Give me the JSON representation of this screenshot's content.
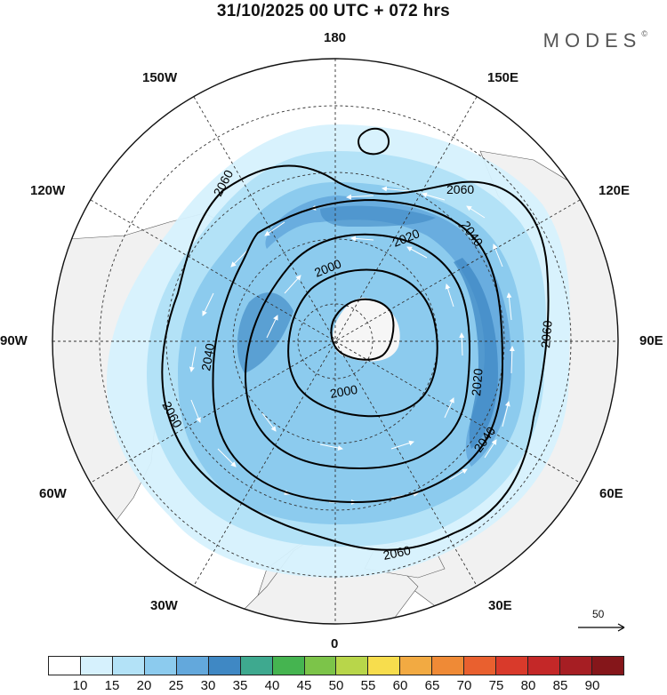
{
  "title": "31/10/2025  00 UTC  + 072 hrs",
  "brand": "MODES",
  "brand_mark": "©",
  "longitude_labels": {
    "north": "180",
    "south": "0",
    "east": "90E",
    "west": "90W",
    "l150w": "150W",
    "l150e": "150E",
    "l120w": "120W",
    "l120e": "120E",
    "l60w": "60W",
    "l60e": "60E",
    "l30w": "30W",
    "l30e": "30E"
  },
  "contour_labels": {
    "c2060_top": "2060",
    "c2060_ne": "2060",
    "c2060_e": "2060",
    "c2060_sw": "2060",
    "c2060_s": "2060",
    "c2040_ne": "2040",
    "c2040_w": "2040",
    "c2040_se": "2040",
    "c2020_n": "2020",
    "c2020_e": "2020",
    "c2000_n": "2000",
    "c2000_s": "2000"
  },
  "reference_vector": "50",
  "colorbar": {
    "ticks": [
      "10",
      "15",
      "20",
      "25",
      "30",
      "35",
      "40",
      "45",
      "50",
      "55",
      "60",
      "65",
      "70",
      "75",
      "80",
      "85",
      "90"
    ],
    "colors": [
      "#ffffff",
      "#d6f1fd",
      "#b3e2f7",
      "#8ccbee",
      "#63a8dc",
      "#3f88c4",
      "#3ea98f",
      "#45b450",
      "#7cc449",
      "#b8d64a",
      "#f7dd4d",
      "#f2aa42",
      "#ef8a36",
      "#e9602f",
      "#d93a2b",
      "#c42828",
      "#a61e23",
      "#85161a"
    ]
  }
}
